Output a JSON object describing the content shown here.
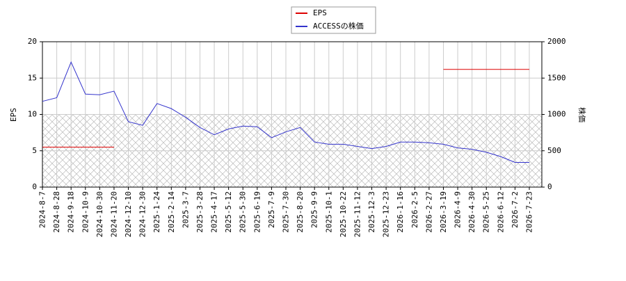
{
  "chart_data": {
    "type": "line",
    "ylabel": "EPS",
    "y2label": "株価",
    "categories": [
      "2024-8-7",
      "2024-8-28",
      "2024-9-18",
      "2024-10-9",
      "2024-10-30",
      "2024-11-20",
      "2024-12-10",
      "2024-12-30",
      "2025-1-24",
      "2025-2-14",
      "2025-3-7",
      "2025-3-28",
      "2025-4-17",
      "2025-5-12",
      "2025-5-30",
      "2025-6-19",
      "2025-7-9",
      "2025-7-30",
      "2025-8-20",
      "2025-9-9",
      "2025-10-1",
      "2025-10-22",
      "2025-11-12",
      "2025-12-3",
      "2025-12-23",
      "2026-1-16",
      "2026-2-5",
      "2026-2-27",
      "2026-3-19",
      "2026-4-9",
      "2026-4-30",
      "2026-5-25",
      "2026-6-12",
      "2026-7-2",
      "2026-7-23"
    ],
    "series": [
      {
        "name": "EPS",
        "color": "#dd0000",
        "axis": "y",
        "values": [
          5.5,
          5.5,
          5.5,
          5.5,
          5.5,
          5.5,
          null,
          null,
          null,
          null,
          null,
          null,
          null,
          null,
          null,
          null,
          null,
          null,
          null,
          null,
          null,
          null,
          null,
          null,
          null,
          null,
          null,
          null,
          16.2,
          16.2,
          16.2,
          16.2,
          16.2,
          16.2,
          16.2
        ]
      },
      {
        "name": "ACCESSの株価",
        "color": "#3333cc",
        "axis": "y2",
        "values": [
          1180,
          1230,
          1720,
          1280,
          1270,
          1320,
          900,
          850,
          1150,
          1080,
          960,
          820,
          720,
          800,
          840,
          830,
          680,
          760,
          820,
          620,
          590,
          590,
          560,
          530,
          560,
          620,
          620,
          610,
          590,
          540,
          520,
          480,
          420,
          340,
          340
        ]
      }
    ],
    "ylim": [
      0,
      20
    ],
    "yticks": [
      0,
      5,
      10,
      15,
      20
    ],
    "y2lim": [
      0,
      2000
    ],
    "y2ticks": [
      0,
      500,
      1000,
      1500,
      2000
    ],
    "band": [
      0,
      10
    ],
    "grid": true,
    "legend": "top"
  }
}
